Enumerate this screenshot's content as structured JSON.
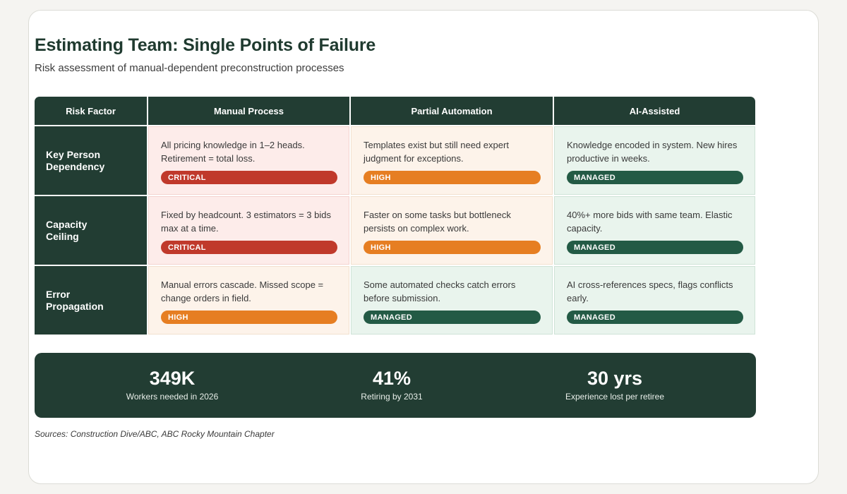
{
  "title": "Estimating Team: Single Points of Failure",
  "subtitle": "Risk assessment of manual-dependent preconstruction processes",
  "table": {
    "headers": [
      "Risk Factor",
      "Manual Process",
      "Partial Automation",
      "AI-Assisted"
    ],
    "rows": [
      {
        "label_lines": [
          "Key Person",
          "Dependency"
        ],
        "cells": [
          {
            "text": "All pricing knowledge in 1–2 heads. Retirement = total loss.",
            "badge": "CRITICAL",
            "level": "critical"
          },
          {
            "text": "Templates exist but still need expert judgment for exceptions.",
            "badge": "HIGH",
            "level": "high"
          },
          {
            "text": "Knowledge encoded in system. New hires productive in weeks.",
            "badge": "MANAGED",
            "level": "managed"
          }
        ]
      },
      {
        "label_lines": [
          "Capacity",
          "Ceiling"
        ],
        "cells": [
          {
            "text": "Fixed by headcount. 3 estimators = 3 bids max at a time.",
            "badge": "CRITICAL",
            "level": "critical"
          },
          {
            "text": "Faster on some tasks but bottleneck persists on complex work.",
            "badge": "HIGH",
            "level": "high"
          },
          {
            "text": "40%+ more bids with same team. Elastic capacity.",
            "badge": "MANAGED",
            "level": "managed"
          }
        ]
      },
      {
        "label_lines": [
          "Error",
          "Propagation"
        ],
        "cells": [
          {
            "text": "Manual errors cascade. Missed scope = change orders in field.",
            "badge": "HIGH",
            "level": "high"
          },
          {
            "text": "Some automated checks catch errors before submission.",
            "badge": "MANAGED",
            "level": "managed"
          },
          {
            "text": "AI cross-references specs, flags conflicts early.",
            "badge": "MANAGED",
            "level": "managed"
          }
        ]
      }
    ]
  },
  "stats": [
    {
      "value": "349K",
      "label": "Workers needed in 2026"
    },
    {
      "value": "41%",
      "label": "Retiring by 2031"
    },
    {
      "value": "30 yrs",
      "label": "Experience lost per retiree"
    }
  ],
  "sources": "Sources: Construction Dive/ABC, ABC Rocky Mountain Chapter",
  "colors": {
    "dark_green": "#223d33",
    "critical": "#c0392b",
    "high": "#e67e22",
    "managed": "#235a45"
  }
}
